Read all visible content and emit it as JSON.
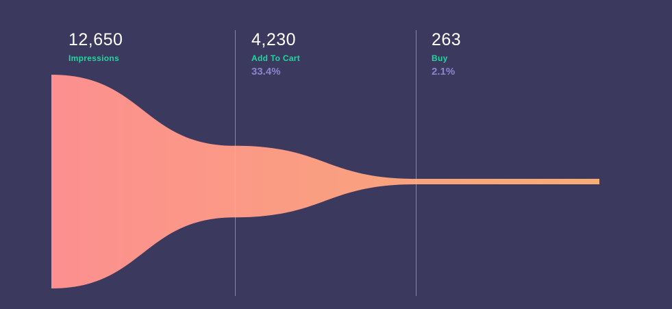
{
  "chart_data": {
    "type": "funnel",
    "title": "",
    "orientation": "horizontal",
    "stages": [
      {
        "label": "Impressions",
        "value": 12650,
        "value_label": "12,650",
        "percent_label": ""
      },
      {
        "label": "Add To Cart",
        "value": 4230,
        "value_label": "4,230",
        "percent_label": "33.4%"
      },
      {
        "label": "Buy",
        "value": 263,
        "value_label": "263",
        "percent_label": "2.1%"
      }
    ],
    "colors": {
      "background": "#3b3a5e",
      "gradient_start": "#fc8f8f",
      "gradient_end": "#f8ad74",
      "value_text": "#ffffff",
      "stage_label": "#1fd79f",
      "percent_text": "#8b84ce",
      "divider": "#c5c5e2"
    }
  }
}
